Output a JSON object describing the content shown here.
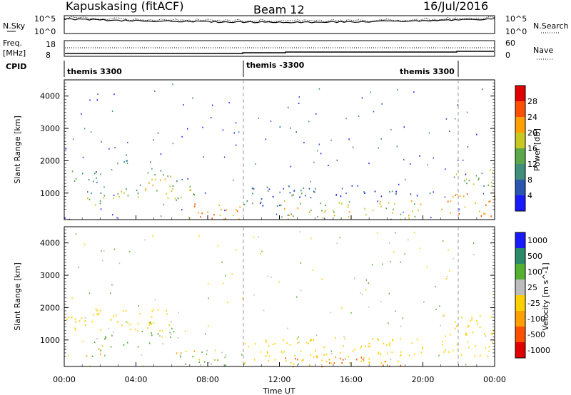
{
  "header": {
    "station": "Kapuskasing (fitACF)",
    "beam": "Beam 12",
    "date": "16/Jul/2016"
  },
  "top_panels": {
    "nsky_label": "N.Sky",
    "nsearch_label": "N.Search",
    "nsky_ticks": [
      "10^5",
      "10^0"
    ],
    "nsky_right_ticks": [
      "10^5",
      "10^0"
    ],
    "freq_label": "Freq.",
    "freq_unit": "[MHz]",
    "freq_ticks": [
      "18",
      "8"
    ],
    "nave_label": "Nave",
    "nave_ticks": [
      "60",
      "0"
    ],
    "cpid_label": "CPID",
    "cpid_modes": [
      "themis 3300",
      "themis -3300",
      "themis 3300"
    ]
  },
  "colors": {
    "power_scale": [
      "#1a1aff",
      "#2a55b0",
      "#3f8f7a",
      "#5aa84a",
      "#c8c820",
      "#ffa000",
      "#ff5000",
      "#e00000"
    ],
    "velocity_scale": [
      "#e00000",
      "#ff5000",
      "#ffa000",
      "#ffd000",
      "#bdbdbd",
      "#55b030",
      "#2a8a6a",
      "#1a1aff"
    ]
  },
  "chart_data": [
    {
      "type": "heatmap",
      "title": "",
      "xlabel": "",
      "ylabel": "Slant Range [km]",
      "colorbar_label": "Power [dB]",
      "colorbar_ticks": [
        "28",
        "24",
        "20",
        "16",
        "12",
        "8",
        "4"
      ],
      "xlim": [
        0,
        24
      ],
      "ylim": [
        180,
        4500
      ],
      "yticks": [
        "4000",
        "3000",
        "2000",
        "1000"
      ],
      "xticks": [
        "00:00",
        "04:00",
        "08:00",
        "12:00",
        "16:00",
        "20:00",
        "00:00"
      ],
      "bands": [
        {
          "t0": 0.1,
          "t1": 2.0,
          "r0": 1300,
          "r1": 1750,
          "v": 10
        },
        {
          "t0": 1.0,
          "t1": 2.2,
          "r0": 600,
          "r1": 1200,
          "v": 14
        },
        {
          "t0": 2.2,
          "t1": 4.2,
          "r0": 800,
          "r1": 1300,
          "v": 16
        },
        {
          "t0": 2.8,
          "t1": 3.6,
          "r0": 1600,
          "r1": 2200,
          "v": 12
        },
        {
          "t0": 4.5,
          "t1": 6.2,
          "r0": 900,
          "r1": 1700,
          "v": 18
        },
        {
          "t0": 5.5,
          "t1": 7.6,
          "r0": 800,
          "r1": 1400,
          "v": 14
        },
        {
          "t0": 6.2,
          "t1": 9.8,
          "r0": 200,
          "r1": 700,
          "v": 22
        },
        {
          "t0": 10.0,
          "t1": 14.0,
          "r0": 600,
          "r1": 1300,
          "v": 8
        },
        {
          "t0": 12.0,
          "t1": 20.0,
          "r0": 200,
          "r1": 800,
          "v": 18
        },
        {
          "t0": 15.0,
          "t1": 20.5,
          "r0": 900,
          "r1": 1100,
          "v": 6
        },
        {
          "t0": 21.0,
          "t1": 24.0,
          "r0": 300,
          "r1": 1000,
          "v": 22
        },
        {
          "t0": 21.5,
          "t1": 24.0,
          "r0": 1200,
          "r1": 1800,
          "v": 14
        }
      ]
    },
    {
      "type": "heatmap",
      "title": "",
      "xlabel": "Time UT",
      "ylabel": "Slant Range [km]",
      "colorbar_label": "Velocity [m s^-1]",
      "colorbar_ticks": [
        "1000",
        "500",
        "100",
        "25",
        "-25",
        "-100",
        "-500",
        "-1000"
      ],
      "xlim": [
        0,
        24
      ],
      "ylim": [
        180,
        4500
      ],
      "yticks": [
        "4000",
        "3000",
        "2000",
        "1000"
      ],
      "xticks": [
        "00:00",
        "04:00",
        "08:00",
        "12:00",
        "16:00",
        "20:00",
        "00:00"
      ],
      "bands": [
        {
          "t0": 0.1,
          "t1": 6.0,
          "r0": 1300,
          "r1": 2000,
          "v": 0
        },
        {
          "t0": 1.0,
          "t1": 2.2,
          "r0": 500,
          "r1": 1000,
          "v": 60
        },
        {
          "t0": 2.2,
          "t1": 4.2,
          "r0": 800,
          "r1": 1200,
          "v": 300
        },
        {
          "t0": 4.5,
          "t1": 6.2,
          "r0": 900,
          "r1": 1600,
          "v": 150
        },
        {
          "t0": 6.0,
          "t1": 10.0,
          "r0": 200,
          "r1": 700,
          "v": 80
        },
        {
          "t0": 10.0,
          "t1": 20.0,
          "r0": 300,
          "r1": 1100,
          "v": 0
        },
        {
          "t0": 12.0,
          "t1": 19.0,
          "r0": 200,
          "r1": 500,
          "v": -150
        },
        {
          "t0": 21.0,
          "t1": 24.0,
          "r0": 500,
          "r1": 1800,
          "v": 0
        }
      ]
    }
  ]
}
